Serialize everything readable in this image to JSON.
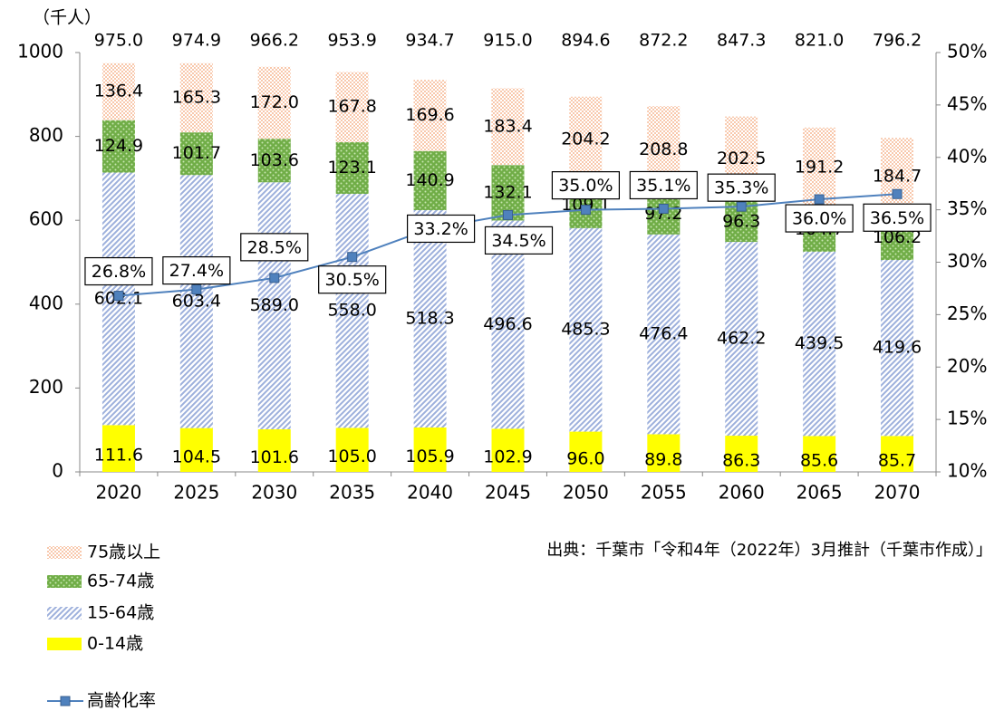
{
  "chart_data": {
    "type": "bar",
    "y_label": "（千人）",
    "source": "出典：千葉市「令和4年（2022年）3月推計（千葉市作成）」",
    "categories": [
      "2020",
      "2025",
      "2030",
      "2035",
      "2040",
      "2045",
      "2050",
      "2055",
      "2060",
      "2065",
      "2070"
    ],
    "ylim": [
      0,
      1000
    ],
    "yticks": [
      0,
      200,
      400,
      600,
      800,
      1000
    ],
    "y2lim": [
      10,
      50
    ],
    "y2ticks": [
      {
        "value": 10,
        "label": "10%"
      },
      {
        "value": 15,
        "label": "15%"
      },
      {
        "value": 20,
        "label": "20%"
      },
      {
        "value": 25,
        "label": "25%"
      },
      {
        "value": 30,
        "label": "30%"
      },
      {
        "value": 35,
        "label": "35%"
      },
      {
        "value": 40,
        "label": "40%"
      },
      {
        "value": 45,
        "label": "45%"
      },
      {
        "value": 50,
        "label": "50%"
      }
    ],
    "series": [
      {
        "name": "0-14歳",
        "color": "#ffff00",
        "values": [
          111.6,
          104.5,
          101.6,
          105.0,
          105.9,
          102.9,
          96.0,
          89.8,
          86.3,
          85.6,
          85.7
        ],
        "value_labels": [
          "111.6",
          "104.5",
          "101.6",
          "105.0",
          "105.9",
          "102.9",
          "96.0",
          "89.8",
          "86.3",
          "85.6",
          "85.7"
        ]
      },
      {
        "name": "15-64歳",
        "color": "#9db0dc",
        "values": [
          602.1,
          603.4,
          589.0,
          558.0,
          518.3,
          496.6,
          485.3,
          476.4,
          462.2,
          439.5,
          419.6
        ],
        "value_labels": [
          "602.1",
          "603.4",
          "589.0",
          "558.0",
          "518.3",
          "496.6",
          "485.3",
          "476.4",
          "462.2",
          "439.5",
          "419.6"
        ]
      },
      {
        "name": "65-74歳",
        "color": "#70ad47",
        "values": [
          124.9,
          101.7,
          103.6,
          123.1,
          140.9,
          132.1,
          109.1,
          97.2,
          96.3,
          104.7,
          106.2
        ],
        "value_labels": [
          "124.9",
          "101.7",
          "103.6",
          "123.1",
          "140.9",
          "132.1",
          "109.1",
          "97.2",
          "96.3",
          "104.7",
          "106.2"
        ]
      },
      {
        "name": "75歳以上",
        "color": "#f4a070",
        "values": [
          136.4,
          165.3,
          172.0,
          167.8,
          169.6,
          183.4,
          204.2,
          208.8,
          202.5,
          191.2,
          184.7
        ],
        "value_labels": [
          "136.4",
          "165.3",
          "172.0",
          "167.8",
          "169.6",
          "183.4",
          "204.2",
          "208.8",
          "202.5",
          "191.2",
          "184.7"
        ]
      },
      {
        "name": "高齢化率",
        "type": "line",
        "axis": "y2",
        "color": "#4f81bd",
        "values": [
          26.8,
          27.4,
          28.5,
          30.5,
          33.2,
          34.5,
          35.0,
          35.1,
          35.3,
          36.0,
          36.5
        ],
        "value_labels": [
          "26.8%",
          "27.4%",
          "28.5%",
          "30.5%",
          "33.2%",
          "34.5%",
          "35.0%",
          "35.1%",
          "35.3%",
          "36.0%",
          "36.5%"
        ]
      }
    ],
    "totals": [
      975.0,
      974.9,
      966.2,
      953.9,
      934.7,
      915.0,
      894.6,
      872.2,
      847.3,
      821.0,
      796.2
    ],
    "totals_labels": [
      "975.0",
      "974.9",
      "966.2",
      "953.9",
      "934.7",
      "915.0",
      "894.6",
      "872.2",
      "847.3",
      "821.0",
      "796.2"
    ]
  }
}
